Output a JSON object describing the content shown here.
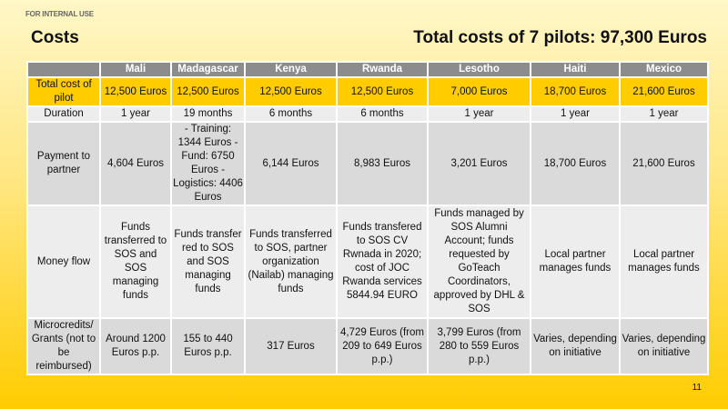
{
  "header": {
    "classification": "FOR INTERNAL USE",
    "title": "Costs",
    "total": "Total costs of 7 pilots: 97,300 Euros"
  },
  "table": {
    "columns": [
      "",
      "Mali",
      "Madagascar",
      "Kenya",
      "Rwanda",
      "Lesotho",
      "Haiti",
      "Mexico"
    ],
    "rows": [
      {
        "label": "Total cost of pilot",
        "cells": [
          "12,500 Euros",
          "12,500 Euros",
          "12,500 Euros",
          "12,500 Euros",
          "7,000 Euros",
          "18,700 Euros",
          "21,600 Euros"
        ]
      },
      {
        "label": "Duration",
        "cells": [
          "1 year",
          "19 months",
          "6 months",
          "6 months",
          "1 year",
          "1 year",
          "1 year"
        ]
      },
      {
        "label": "Payment to partner",
        "cells": [
          "4,604 Euros",
          "- Training: 1344 Euros - Fund: 6750 Euros - Logistics: 4406 Euros",
          "6,144 Euros",
          "8,983 Euros",
          "3,201 Euros",
          "18,700 Euros",
          "21,600 Euros"
        ]
      },
      {
        "label": "Money flow",
        "cells": [
          "Funds transferred to SOS and SOS managing funds",
          "Funds transfer red to SOS and SOS managing funds",
          "Funds transferred to SOS, partner organization (Nailab) managing funds",
          "Funds transfered to SOS CV Rwnada in 2020; cost of JOC Rwanda services 5844.94 EURO",
          "Funds managed by SOS Alumni Account; funds requested by GoTeach Coordinators, approved by DHL & SOS",
          "Local partner manages funds",
          "Local partner manages funds"
        ]
      },
      {
        "label": "Microcredits/ Grants (not to be reimbursed)",
        "cells": [
          "Around 1200 Euros p.p.",
          "155 to 440 Euros p.p.",
          "317 Euros",
          "4,729 Euros (from 209 to 649 Euros p.p.)",
          "3,799 Euros (from 280 to 559 Euros p.p.)",
          "Varies, depending on initiative",
          "Varies, depending on initiative"
        ]
      }
    ]
  },
  "footer": {
    "page_number": "11"
  },
  "colors": {
    "accent": "#ffcc00",
    "header": "#8c8c8c"
  }
}
